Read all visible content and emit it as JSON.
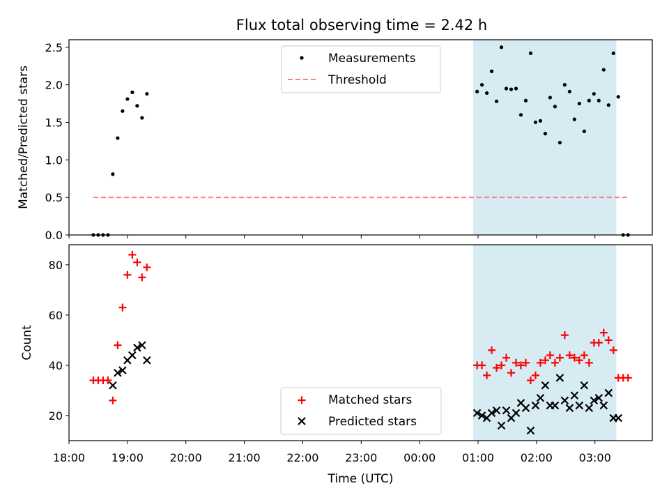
{
  "chart_data": [
    {
      "type": "scatter",
      "title": "Flux total observing time = 2.42 h",
      "xlabel": "",
      "ylabel": "Matched/Predicted stars",
      "ylim": [
        0,
        2.6
      ],
      "yticks": [
        "0.0",
        "0.5",
        "1.0",
        "1.5",
        "2.0",
        "2.5"
      ],
      "ytick_values": [
        0,
        0.5,
        1.0,
        1.5,
        2.0,
        2.5
      ],
      "xlim": [
        "18:00",
        "04:00"
      ],
      "legend_position": "top-center",
      "highlight_span": {
        "from": "00:55",
        "to": "03:22",
        "color": "#add8e6"
      },
      "series": [
        {
          "name": "Measurements",
          "marker": "dot",
          "color": "#000000",
          "points": [
            [
              "18:25",
              0
            ],
            [
              "18:30",
              0
            ],
            [
              "18:35",
              0
            ],
            [
              "18:40",
              0
            ],
            [
              "18:45",
              0.81
            ],
            [
              "18:50",
              1.29
            ],
            [
              "18:55",
              1.65
            ],
            [
              "19:00",
              1.81
            ],
            [
              "19:05",
              1.9
            ],
            [
              "19:10",
              1.72
            ],
            [
              "19:15",
              1.56
            ],
            [
              "19:20",
              1.88
            ],
            [
              "00:59",
              1.91
            ],
            [
              "01:04",
              2.0
            ],
            [
              "01:09",
              1.89
            ],
            [
              "01:14",
              2.18
            ],
            [
              "01:19",
              1.78
            ],
            [
              "01:24",
              2.5
            ],
            [
              "01:29",
              1.95
            ],
            [
              "01:34",
              1.94
            ],
            [
              "01:39",
              1.95
            ],
            [
              "01:44",
              1.6
            ],
            [
              "01:49",
              1.79
            ],
            [
              "01:54",
              2.42
            ],
            [
              "01:59",
              1.5
            ],
            [
              "02:04",
              1.52
            ],
            [
              "02:09",
              1.35
            ],
            [
              "02:14",
              1.83
            ],
            [
              "02:19",
              1.71
            ],
            [
              "02:24",
              1.23
            ],
            [
              "02:29",
              2.0
            ],
            [
              "02:34",
              1.91
            ],
            [
              "02:39",
              1.54
            ],
            [
              "02:44",
              1.75
            ],
            [
              "02:49",
              1.38
            ],
            [
              "02:54",
              1.79
            ],
            [
              "02:59",
              1.88
            ],
            [
              "03:04",
              1.79
            ],
            [
              "03:09",
              2.2
            ],
            [
              "03:14",
              1.73
            ],
            [
              "03:19",
              2.42
            ],
            [
              "03:24",
              1.84
            ],
            [
              "03:29",
              0
            ],
            [
              "03:34",
              0
            ]
          ]
        },
        {
          "name": "Threshold",
          "marker": "dashed-line",
          "color": "#ff7f7f",
          "points": [
            [
              "18:25",
              0.5
            ],
            [
              "03:34",
              0.5
            ]
          ]
        }
      ]
    },
    {
      "type": "scatter",
      "title": "",
      "xlabel": "Time (UTC)",
      "ylabel": "Count",
      "ylim": [
        10,
        88
      ],
      "yticks": [
        "20",
        "40",
        "60",
        "80"
      ],
      "ytick_values": [
        20,
        40,
        60,
        80
      ],
      "xlim": [
        "18:00",
        "04:00"
      ],
      "xticks": [
        "18:00",
        "19:00",
        "20:00",
        "21:00",
        "22:00",
        "23:00",
        "00:00",
        "01:00",
        "02:00",
        "03:00"
      ],
      "legend_position": "bottom-center",
      "highlight_span": {
        "from": "00:55",
        "to": "03:22",
        "color": "#add8e6"
      },
      "series": [
        {
          "name": "Matched stars",
          "marker": "plus",
          "color": "#ff0000",
          "points": [
            [
              "18:25",
              34
            ],
            [
              "18:30",
              34
            ],
            [
              "18:35",
              34
            ],
            [
              "18:40",
              34
            ],
            [
              "18:45",
              26
            ],
            [
              "18:50",
              48
            ],
            [
              "18:55",
              63
            ],
            [
              "19:00",
              76
            ],
            [
              "19:05",
              84
            ],
            [
              "19:10",
              81
            ],
            [
              "19:15",
              75
            ],
            [
              "19:20",
              79
            ],
            [
              "00:59",
              40
            ],
            [
              "01:04",
              40
            ],
            [
              "01:09",
              36
            ],
            [
              "01:14",
              46
            ],
            [
              "01:19",
              39
            ],
            [
              "01:24",
              40
            ],
            [
              "01:29",
              43
            ],
            [
              "01:34",
              37
            ],
            [
              "01:39",
              41
            ],
            [
              "01:44",
              40
            ],
            [
              "01:49",
              41
            ],
            [
              "01:54",
              34
            ],
            [
              "01:59",
              36
            ],
            [
              "02:04",
              41
            ],
            [
              "02:09",
              42
            ],
            [
              "02:14",
              44
            ],
            [
              "02:19",
              41
            ],
            [
              "02:24",
              43
            ],
            [
              "02:29",
              52
            ],
            [
              "02:34",
              44
            ],
            [
              "02:39",
              43
            ],
            [
              "02:44",
              42
            ],
            [
              "02:49",
              44
            ],
            [
              "02:54",
              41
            ],
            [
              "02:59",
              49
            ],
            [
              "03:04",
              49
            ],
            [
              "03:09",
              53
            ],
            [
              "03:14",
              50
            ],
            [
              "03:19",
              46
            ],
            [
              "03:24",
              35
            ],
            [
              "03:29",
              35
            ],
            [
              "03:34",
              35
            ]
          ]
        },
        {
          "name": "Predicted stars",
          "marker": "x",
          "color": "#000000",
          "points": [
            [
              "18:45",
              32
            ],
            [
              "18:50",
              37
            ],
            [
              "18:55",
              38
            ],
            [
              "19:00",
              42
            ],
            [
              "19:05",
              44
            ],
            [
              "19:10",
              47
            ],
            [
              "19:15",
              48
            ],
            [
              "19:20",
              42
            ],
            [
              "00:59",
              21
            ],
            [
              "01:04",
              20
            ],
            [
              "01:09",
              19
            ],
            [
              "01:14",
              21
            ],
            [
              "01:19",
              22
            ],
            [
              "01:24",
              16
            ],
            [
              "01:29",
              22
            ],
            [
              "01:34",
              19
            ],
            [
              "01:39",
              21
            ],
            [
              "01:44",
              25
            ],
            [
              "01:49",
              23
            ],
            [
              "01:54",
              14
            ],
            [
              "01:59",
              24
            ],
            [
              "02:04",
              27
            ],
            [
              "02:09",
              32
            ],
            [
              "02:14",
              24
            ],
            [
              "02:19",
              24
            ],
            [
              "02:24",
              35
            ],
            [
              "02:29",
              26
            ],
            [
              "02:34",
              23
            ],
            [
              "02:39",
              28
            ],
            [
              "02:44",
              24
            ],
            [
              "02:49",
              32
            ],
            [
              "02:54",
              23
            ],
            [
              "02:59",
              26
            ],
            [
              "03:04",
              27
            ],
            [
              "03:09",
              24
            ],
            [
              "03:14",
              29
            ],
            [
              "03:19",
              19
            ],
            [
              "03:24",
              19
            ]
          ]
        }
      ]
    }
  ]
}
